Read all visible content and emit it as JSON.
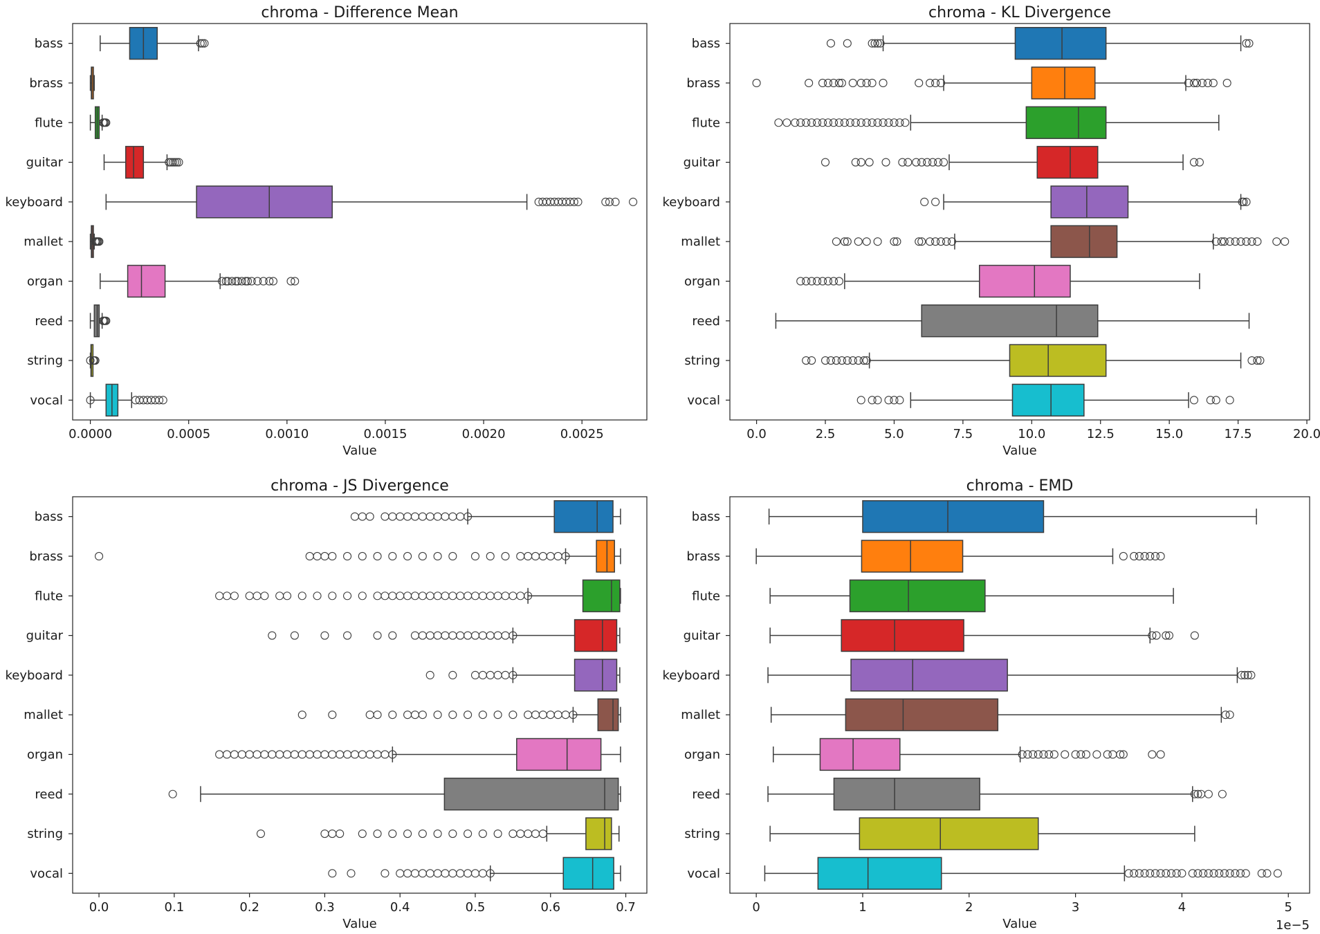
{
  "chart_data": [
    {
      "type": "boxplot",
      "orientation": "horizontal",
      "title": "chroma - Difference Mean",
      "xlabel": "Value",
      "ylabel": "",
      "xlim": [
        -9e-05,
        0.00283
      ],
      "ticks": [
        0,
        0.0005,
        0.001,
        0.0015,
        0.002,
        0.0025
      ],
      "tick_labels": [
        "0.0000",
        "0.0005",
        "0.0010",
        "0.0015",
        "0.0020",
        "0.0025"
      ],
      "multiplier": "",
      "categories": [
        "bass",
        "brass",
        "flute",
        "guitar",
        "keyboard",
        "mallet",
        "organ",
        "reed",
        "string",
        "vocal"
      ],
      "boxes": [
        {
          "whislo": 5e-05,
          "q1": 0.0002,
          "med": 0.00027,
          "q3": 0.00034,
          "whishi": 0.00055,
          "fliers": [
            0.00056,
            0.00057,
            0.00058
          ]
        },
        {
          "whislo": 0.0,
          "q1": 5e-06,
          "med": 8e-06,
          "q3": 1.2e-05,
          "whishi": 2e-05,
          "fliers": []
        },
        {
          "whislo": 0.0,
          "q1": 2.5e-05,
          "med": 3.5e-05,
          "q3": 4.5e-05,
          "whishi": 6e-05,
          "fliers": [
            6.5e-05,
            7e-05,
            7.5e-05,
            8e-05
          ]
        },
        {
          "whislo": 7e-05,
          "q1": 0.00018,
          "med": 0.00022,
          "q3": 0.00027,
          "whishi": 0.00039,
          "fliers": [
            0.0004,
            0.00041,
            0.00042,
            0.00043,
            0.00044,
            0.00045
          ]
        },
        {
          "whislo": 8e-05,
          "q1": 0.00054,
          "med": 0.00091,
          "q3": 0.00123,
          "whishi": 0.00222,
          "fliers": [
            0.00228,
            0.0023,
            0.00232,
            0.00234,
            0.00236,
            0.00238,
            0.0024,
            0.00242,
            0.00244,
            0.00246,
            0.00248,
            0.00262,
            0.00264,
            0.00267,
            0.00276
          ]
        },
        {
          "whislo": 0.0,
          "q1": 5e-06,
          "med": 8e-06,
          "q3": 1.2e-05,
          "whishi": 2e-05,
          "fliers": [
            2.5e-05,
            3e-05,
            3.5e-05,
            4e-05,
            4.5e-05
          ]
        },
        {
          "whislo": 5e-05,
          "q1": 0.00019,
          "med": 0.00026,
          "q3": 0.00038,
          "whishi": 0.00066,
          "fliers": [
            0.00067,
            0.00069,
            0.0007,
            0.00072,
            0.00074,
            0.00075,
            0.00077,
            0.00079,
            0.0008,
            0.00082,
            0.00085,
            0.00088,
            0.00091,
            0.00093,
            0.00102,
            0.00104
          ]
        },
        {
          "whislo": 0.0,
          "q1": 2e-05,
          "med": 3.5e-05,
          "q3": 4.5e-05,
          "whishi": 6e-05,
          "fliers": [
            6.5e-05,
            7e-05,
            7.5e-05,
            8e-05
          ]
        },
        {
          "whislo": 0.0,
          "q1": 3e-06,
          "med": 5e-06,
          "q3": 8e-06,
          "whishi": 1.2e-05,
          "fliers": [
            0.0,
            1.5e-05,
            2e-05,
            2.5e-05
          ]
        },
        {
          "whislo": 0.0,
          "q1": 8e-05,
          "med": 0.00011,
          "q3": 0.00014,
          "whishi": 0.00021,
          "fliers": [
            0.0,
            0.00023,
            0.00025,
            0.00027,
            0.00029,
            0.00031,
            0.00033,
            0.00035,
            0.00037
          ]
        }
      ]
    },
    {
      "type": "boxplot",
      "orientation": "horizontal",
      "title": "chroma - KL Divergence",
      "xlabel": "Value",
      "ylabel": "",
      "xlim": [
        -0.97,
        20.1
      ],
      "ticks": [
        0,
        2.5,
        5,
        7.5,
        10,
        12.5,
        15,
        17.5,
        20
      ],
      "tick_labels": [
        "0.0",
        "2.5",
        "5.0",
        "7.5",
        "10.0",
        "12.5",
        "15.0",
        "17.5",
        "20.0"
      ],
      "multiplier": "",
      "categories": [
        "bass",
        "brass",
        "flute",
        "guitar",
        "keyboard",
        "mallet",
        "organ",
        "reed",
        "string",
        "vocal"
      ],
      "boxes": [
        {
          "whislo": 4.6,
          "q1": 9.4,
          "med": 11.1,
          "q3": 12.7,
          "whishi": 17.6,
          "fliers": [
            2.7,
            3.3,
            4.2,
            4.3,
            4.4,
            4.5,
            17.8,
            17.9
          ]
        },
        {
          "whislo": 6.8,
          "q1": 10.0,
          "med": 11.2,
          "q3": 12.3,
          "whishi": 15.6,
          "fliers": [
            0.0,
            1.9,
            2.4,
            2.6,
            2.8,
            3.0,
            3.1,
            3.5,
            3.8,
            4.0,
            4.2,
            4.6,
            5.9,
            6.3,
            6.5,
            6.7,
            15.7,
            15.9,
            16.0,
            16.2,
            16.4,
            16.6,
            17.1
          ]
        },
        {
          "whislo": 5.6,
          "q1": 9.8,
          "med": 11.7,
          "q3": 12.7,
          "whishi": 16.8,
          "fliers": [
            0.8,
            1.1,
            1.4,
            1.6,
            1.8,
            2.0,
            2.2,
            2.4,
            2.6,
            2.8,
            3.0,
            3.2,
            3.4,
            3.6,
            3.8,
            4.0,
            4.2,
            4.4,
            4.6,
            4.8,
            5.0,
            5.2,
            5.4
          ]
        },
        {
          "whislo": 7.0,
          "q1": 10.2,
          "med": 11.4,
          "q3": 12.4,
          "whishi": 15.5,
          "fliers": [
            2.5,
            3.6,
            3.8,
            4.1,
            4.7,
            5.3,
            5.5,
            5.8,
            6.0,
            6.2,
            6.4,
            6.6,
            6.8,
            15.9,
            16.1
          ]
        },
        {
          "whislo": 6.8,
          "q1": 10.7,
          "med": 12.0,
          "q3": 13.5,
          "whishi": 17.6,
          "fliers": [
            6.1,
            6.5,
            17.65,
            17.7,
            17.8
          ]
        },
        {
          "whislo": 7.2,
          "q1": 10.7,
          "med": 12.1,
          "q3": 13.1,
          "whishi": 16.6,
          "fliers": [
            2.9,
            3.2,
            3.3,
            3.7,
            4.0,
            4.4,
            5.0,
            5.1,
            5.9,
            6.0,
            6.3,
            6.5,
            6.7,
            6.9,
            7.1,
            16.7,
            16.9,
            17.0,
            17.2,
            17.4,
            17.6,
            17.8,
            18.0,
            18.2,
            18.9,
            19.2
          ]
        },
        {
          "whislo": 3.2,
          "q1": 8.1,
          "med": 10.1,
          "q3": 11.4,
          "whishi": 16.1,
          "fliers": [
            1.6,
            1.8,
            2.0,
            2.2,
            2.4,
            2.6,
            2.8,
            3.0
          ]
        },
        {
          "whislo": 0.7,
          "q1": 6.0,
          "med": 10.9,
          "q3": 12.4,
          "whishi": 17.9,
          "fliers": []
        },
        {
          "whislo": 4.1,
          "q1": 9.2,
          "med": 10.6,
          "q3": 12.7,
          "whishi": 17.6,
          "fliers": [
            1.8,
            2.0,
            2.5,
            2.7,
            2.9,
            3.1,
            3.3,
            3.5,
            3.7,
            3.9,
            4.0,
            18.0,
            18.2,
            18.3
          ]
        },
        {
          "whislo": 5.6,
          "q1": 9.3,
          "med": 10.7,
          "q3": 11.9,
          "whishi": 15.7,
          "fliers": [
            3.8,
            4.2,
            4.4,
            4.8,
            5.0,
            5.2,
            15.9,
            16.5,
            16.7,
            17.2
          ]
        }
      ]
    },
    {
      "type": "boxplot",
      "orientation": "horizontal",
      "title": "chroma - JS Divergence",
      "xlabel": "Value",
      "ylabel": "",
      "xlim": [
        -0.035,
        0.728
      ],
      "ticks": [
        0,
        0.1,
        0.2,
        0.3,
        0.4,
        0.5,
        0.6,
        0.7
      ],
      "tick_labels": [
        "0.0",
        "0.1",
        "0.2",
        "0.3",
        "0.4",
        "0.5",
        "0.6",
        "0.7"
      ],
      "multiplier": "",
      "categories": [
        "bass",
        "brass",
        "flute",
        "guitar",
        "keyboard",
        "mallet",
        "organ",
        "reed",
        "string",
        "vocal"
      ],
      "boxes": [
        {
          "whislo": 0.49,
          "q1": 0.605,
          "med": 0.662,
          "q3": 0.683,
          "whishi": 0.693,
          "fliers": [
            0.34,
            0.35,
            0.36,
            0.38,
            0.39,
            0.4,
            0.41,
            0.42,
            0.43,
            0.44,
            0.45,
            0.46,
            0.47,
            0.48,
            0.49
          ]
        },
        {
          "whislo": 0.62,
          "q1": 0.661,
          "med": 0.675,
          "q3": 0.685,
          "whishi": 0.693,
          "fliers": [
            0.0,
            0.28,
            0.29,
            0.3,
            0.31,
            0.33,
            0.35,
            0.37,
            0.39,
            0.41,
            0.43,
            0.45,
            0.47,
            0.5,
            0.52,
            0.54,
            0.56,
            0.57,
            0.58,
            0.59,
            0.6,
            0.61,
            0.62
          ]
        },
        {
          "whislo": 0.57,
          "q1": 0.643,
          "med": 0.681,
          "q3": 0.692,
          "whishi": 0.693,
          "fliers": [
            0.16,
            0.17,
            0.18,
            0.2,
            0.21,
            0.22,
            0.24,
            0.25,
            0.27,
            0.29,
            0.31,
            0.33,
            0.35,
            0.37,
            0.38,
            0.39,
            0.4,
            0.41,
            0.42,
            0.43,
            0.44,
            0.45,
            0.46,
            0.47,
            0.48,
            0.49,
            0.5,
            0.51,
            0.52,
            0.53,
            0.54,
            0.55,
            0.56,
            0.57
          ]
        },
        {
          "whislo": 0.55,
          "q1": 0.632,
          "med": 0.669,
          "q3": 0.688,
          "whishi": 0.692,
          "fliers": [
            0.23,
            0.26,
            0.3,
            0.33,
            0.37,
            0.39,
            0.42,
            0.43,
            0.44,
            0.45,
            0.46,
            0.47,
            0.48,
            0.49,
            0.5,
            0.51,
            0.52,
            0.53,
            0.54,
            0.55
          ]
        },
        {
          "whislo": 0.55,
          "q1": 0.632,
          "med": 0.669,
          "q3": 0.688,
          "whishi": 0.692,
          "fliers": [
            0.44,
            0.47,
            0.5,
            0.51,
            0.52,
            0.53,
            0.54,
            0.55
          ]
        },
        {
          "whislo": 0.63,
          "q1": 0.663,
          "med": 0.683,
          "q3": 0.69,
          "whishi": 0.693,
          "fliers": [
            0.27,
            0.31,
            0.36,
            0.37,
            0.39,
            0.41,
            0.42,
            0.43,
            0.45,
            0.47,
            0.49,
            0.51,
            0.53,
            0.55,
            0.57,
            0.58,
            0.59,
            0.6,
            0.61,
            0.62,
            0.63
          ]
        },
        {
          "whislo": 0.39,
          "q1": 0.555,
          "med": 0.622,
          "q3": 0.667,
          "whishi": 0.693,
          "fliers": [
            0.16,
            0.17,
            0.18,
            0.19,
            0.2,
            0.21,
            0.22,
            0.23,
            0.24,
            0.25,
            0.26,
            0.27,
            0.28,
            0.29,
            0.3,
            0.31,
            0.32,
            0.33,
            0.34,
            0.35,
            0.36,
            0.37,
            0.38,
            0.39
          ]
        },
        {
          "whislo": 0.135,
          "q1": 0.459,
          "med": 0.672,
          "q3": 0.69,
          "whishi": 0.693,
          "fliers": [
            0.098
          ]
        },
        {
          "whislo": 0.595,
          "q1": 0.647,
          "med": 0.672,
          "q3": 0.681,
          "whishi": 0.691,
          "fliers": [
            0.215,
            0.3,
            0.31,
            0.32,
            0.35,
            0.37,
            0.39,
            0.41,
            0.43,
            0.45,
            0.47,
            0.49,
            0.51,
            0.53,
            0.55,
            0.56,
            0.57,
            0.58,
            0.59
          ]
        },
        {
          "whislo": 0.52,
          "q1": 0.617,
          "med": 0.656,
          "q3": 0.684,
          "whishi": 0.693,
          "fliers": [
            0.31,
            0.335,
            0.38,
            0.4,
            0.41,
            0.42,
            0.43,
            0.44,
            0.45,
            0.46,
            0.47,
            0.48,
            0.49,
            0.5,
            0.51,
            0.52
          ]
        }
      ]
    },
    {
      "type": "boxplot",
      "orientation": "horizontal",
      "title": "chroma - EMD",
      "xlabel": "Value",
      "ylabel": "",
      "xlim": [
        -0.248,
        5.2
      ],
      "ticks": [
        0,
        1,
        2,
        3,
        4,
        5
      ],
      "tick_labels": [
        "0",
        "1",
        "2",
        "3",
        "4",
        "5"
      ],
      "multiplier": "1e−5",
      "categories": [
        "bass",
        "brass",
        "flute",
        "guitar",
        "keyboard",
        "mallet",
        "organ",
        "reed",
        "string",
        "vocal"
      ],
      "boxes": [
        {
          "whislo": 0.12,
          "q1": 1.0,
          "med": 1.8,
          "q3": 2.7,
          "whishi": 4.7,
          "fliers": []
        },
        {
          "whislo": 0.0,
          "q1": 0.99,
          "med": 1.45,
          "q3": 1.94,
          "whishi": 3.35,
          "fliers": [
            3.45,
            3.55,
            3.6,
            3.65,
            3.7,
            3.75,
            3.8
          ]
        },
        {
          "whislo": 0.13,
          "q1": 0.88,
          "med": 1.43,
          "q3": 2.15,
          "whishi": 3.92,
          "fliers": []
        },
        {
          "whislo": 0.13,
          "q1": 0.8,
          "med": 1.3,
          "q3": 1.95,
          "whishi": 3.7,
          "fliers": [
            3.72,
            3.76,
            3.85,
            3.88,
            4.12
          ]
        },
        {
          "whislo": 0.11,
          "q1": 0.89,
          "med": 1.47,
          "q3": 2.36,
          "whishi": 4.52,
          "fliers": [
            4.56,
            4.59,
            4.62,
            4.65
          ]
        },
        {
          "whislo": 0.14,
          "q1": 0.84,
          "med": 1.38,
          "q3": 2.27,
          "whishi": 4.37,
          "fliers": [
            4.41,
            4.45
          ]
        },
        {
          "whislo": 0.16,
          "q1": 0.6,
          "med": 0.91,
          "q3": 1.35,
          "whishi": 2.48,
          "fliers": [
            2.5,
            2.55,
            2.6,
            2.65,
            2.7,
            2.75,
            2.8,
            2.9,
            3.0,
            3.05,
            3.1,
            3.2,
            3.3,
            3.35,
            3.42,
            3.45,
            3.72,
            3.8
          ]
        },
        {
          "whislo": 0.11,
          "q1": 0.73,
          "med": 1.3,
          "q3": 2.1,
          "whishi": 4.1,
          "fliers": [
            4.12,
            4.15,
            4.18,
            4.25,
            4.38
          ]
        },
        {
          "whislo": 0.13,
          "q1": 0.97,
          "med": 1.73,
          "q3": 2.65,
          "whishi": 4.12,
          "fliers": []
        },
        {
          "whislo": 0.08,
          "q1": 0.58,
          "med": 1.05,
          "q3": 1.74,
          "whishi": 3.46,
          "fliers": [
            3.5,
            3.55,
            3.6,
            3.65,
            3.7,
            3.75,
            3.8,
            3.85,
            3.9,
            3.95,
            4.0,
            4.1,
            4.15,
            4.2,
            4.25,
            4.3,
            4.35,
            4.4,
            4.45,
            4.5,
            4.55,
            4.6,
            4.75,
            4.8,
            4.9
          ]
        }
      ]
    }
  ],
  "palette": [
    "#1f77b4",
    "#ff7f0e",
    "#2ca02c",
    "#d62728",
    "#9467bd",
    "#8c564b",
    "#e377c2",
    "#7f7f7f",
    "#bcbd22",
    "#17becf"
  ],
  "box_edge_color": "#3d3d3d"
}
